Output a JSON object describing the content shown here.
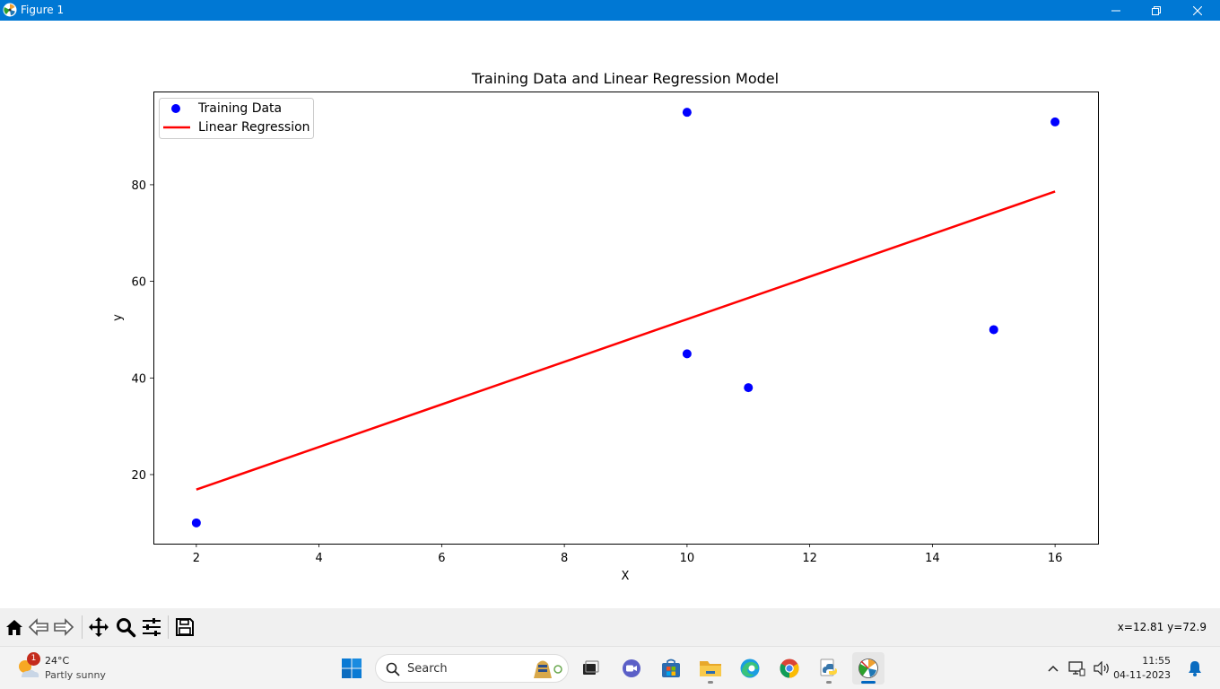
{
  "window": {
    "title": "Figure 1"
  },
  "chart_data": {
    "type": "scatter",
    "title": "Training Data and Linear Regression Model",
    "xlabel": "X",
    "ylabel": "y",
    "xlim": [
      1.3,
      16.7
    ],
    "ylim": [
      5.7,
      99.3
    ],
    "xticks": [
      2,
      4,
      6,
      8,
      10,
      12,
      14,
      16
    ],
    "yticks": [
      20,
      40,
      60,
      80
    ],
    "legend_position": "upper-left",
    "series": [
      {
        "name": "Training Data",
        "kind": "scatter",
        "color": "#0000ff",
        "points": [
          [
            2,
            10
          ],
          [
            10,
            95
          ],
          [
            10,
            45
          ],
          [
            11,
            38
          ],
          [
            15,
            50
          ],
          [
            16,
            93
          ]
        ]
      },
      {
        "name": "Linear Regression",
        "kind": "line",
        "color": "#ff0000",
        "points": [
          [
            2,
            16.9
          ],
          [
            16,
            78.6
          ]
        ]
      }
    ]
  },
  "toolbar": {
    "buttons": [
      {
        "name": "home-icon"
      },
      {
        "name": "back-icon"
      },
      {
        "name": "forward-icon"
      },
      {
        "name": "pan-icon"
      },
      {
        "name": "zoom-icon"
      },
      {
        "name": "configure-subplots-icon"
      },
      {
        "name": "save-icon"
      }
    ],
    "coords": "x=12.81 y=72.9"
  },
  "taskbar": {
    "weather": {
      "temp": "24°C",
      "condition": "Partly sunny",
      "badge": "1"
    },
    "search_placeholder": "Search",
    "time": "11:55",
    "date": "04-11-2023"
  }
}
